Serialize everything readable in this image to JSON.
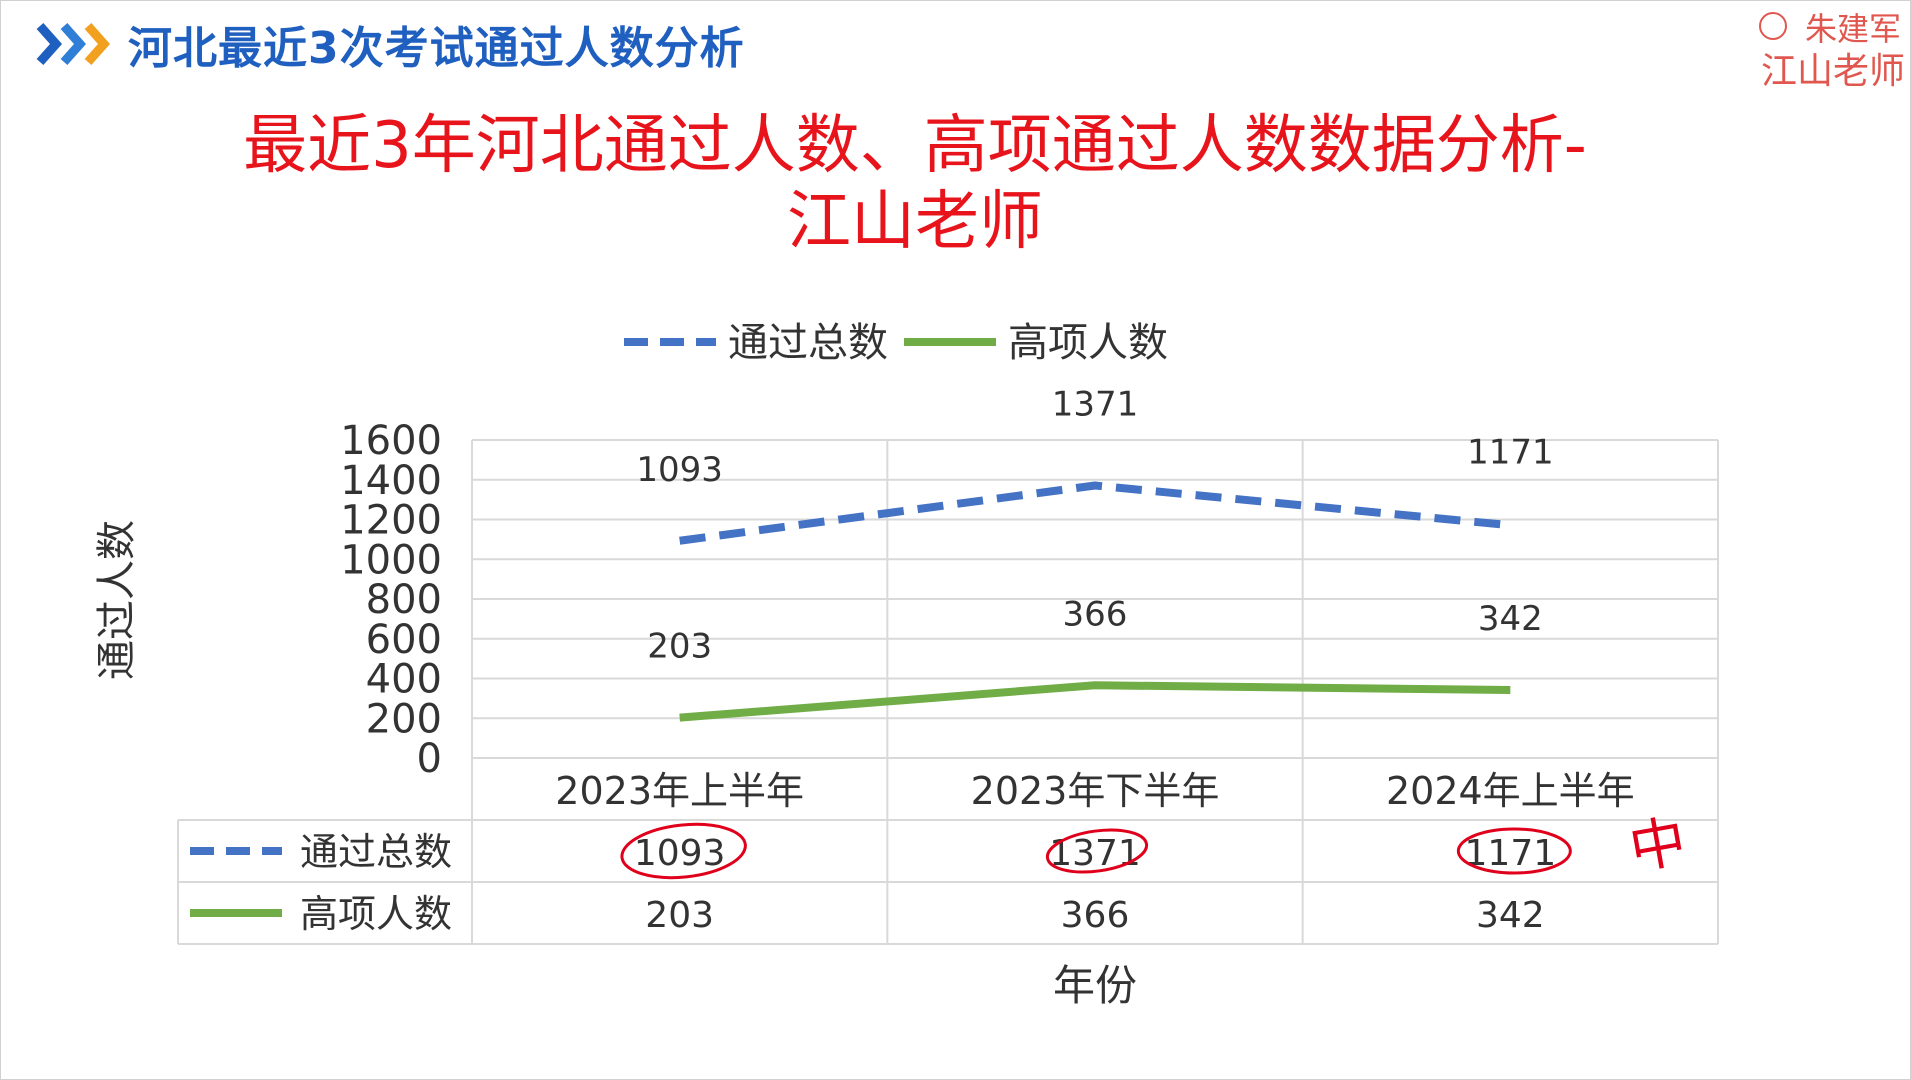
{
  "header": {
    "title": "河北最近3次考试通过人数分析"
  },
  "logo": {
    "line1": "朱建军",
    "line2": "江山老师"
  },
  "main_title": {
    "line1": "最近3年河北通过人数、高项通过人数数据分析-",
    "line2": "江山老师"
  },
  "colors": {
    "title_red": "#e8141c",
    "header_blue": "#1f5fbf",
    "series_blue": "#4472c4",
    "series_green": "#70ad47",
    "ink_red": "#e0001b"
  },
  "chart_data": {
    "type": "line",
    "categories": [
      "2023年上半年",
      "2023年下半年",
      "2024年上半年"
    ],
    "series": [
      {
        "name": "通过总数",
        "values": [
          1093,
          1371,
          1171
        ],
        "style": "dashed",
        "color": "#4472c4"
      },
      {
        "name": "高项人数",
        "values": [
          203,
          366,
          342
        ],
        "style": "solid",
        "color": "#70ad47"
      }
    ],
    "ylim": [
      0,
      1600
    ],
    "yticks": [
      0,
      200,
      400,
      600,
      800,
      1000,
      1200,
      1400,
      1600
    ],
    "ylabel": "通过人数",
    "xlabel": "年份",
    "legend": "top",
    "data_table": true,
    "annotation": "中"
  }
}
